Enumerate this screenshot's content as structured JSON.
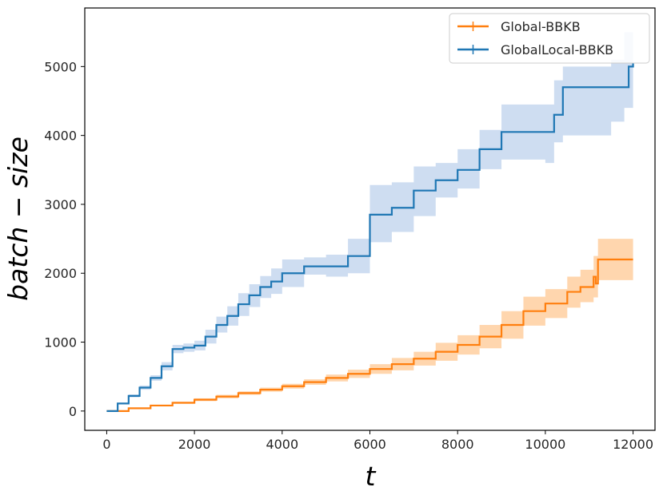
{
  "chart_data": {
    "type": "line",
    "xlabel": "t",
    "ylabel": "batch − size",
    "xlim": [
      -500,
      12500
    ],
    "ylim": [
      -280,
      5850
    ],
    "xticks": [
      0,
      2000,
      4000,
      6000,
      8000,
      10000,
      12000
    ],
    "yticks": [
      0,
      1000,
      2000,
      3000,
      4000,
      5000
    ],
    "grid": false,
    "legend_position": "top-right",
    "series": [
      {
        "name": "Global-BBKB",
        "color": "#ff7f0e",
        "band_color": "#ffbb78",
        "points": [
          [
            0,
            0
          ],
          [
            500,
            40
          ],
          [
            1000,
            80
          ],
          [
            1500,
            120
          ],
          [
            2000,
            165
          ],
          [
            2500,
            210
          ],
          [
            3000,
            260
          ],
          [
            3500,
            310
          ],
          [
            4000,
            360
          ],
          [
            4500,
            420
          ],
          [
            5000,
            480
          ],
          [
            5500,
            540
          ],
          [
            6000,
            610
          ],
          [
            6500,
            680
          ],
          [
            7000,
            760
          ],
          [
            7500,
            860
          ],
          [
            8000,
            960
          ],
          [
            8500,
            1080
          ],
          [
            9000,
            1250
          ],
          [
            9500,
            1450
          ],
          [
            10000,
            1560
          ],
          [
            10500,
            1730
          ],
          [
            10800,
            1800
          ],
          [
            11100,
            1950
          ],
          [
            11150,
            1850
          ],
          [
            11200,
            2200
          ],
          [
            12000,
            2200
          ]
        ],
        "upper": [
          [
            0,
            0
          ],
          [
            500,
            45
          ],
          [
            1000,
            90
          ],
          [
            1500,
            135
          ],
          [
            2000,
            185
          ],
          [
            2500,
            235
          ],
          [
            3000,
            285
          ],
          [
            3500,
            340
          ],
          [
            4000,
            395
          ],
          [
            4500,
            460
          ],
          [
            5000,
            530
          ],
          [
            5500,
            600
          ],
          [
            6000,
            680
          ],
          [
            6500,
            770
          ],
          [
            7000,
            860
          ],
          [
            7500,
            990
          ],
          [
            8000,
            1100
          ],
          [
            8500,
            1250
          ],
          [
            9000,
            1450
          ],
          [
            9500,
            1660
          ],
          [
            10000,
            1770
          ],
          [
            10500,
            1950
          ],
          [
            10800,
            2050
          ],
          [
            11100,
            2250
          ],
          [
            11200,
            2500
          ],
          [
            12000,
            2500
          ]
        ],
        "lower": [
          [
            0,
            0
          ],
          [
            500,
            35
          ],
          [
            1000,
            70
          ],
          [
            1500,
            105
          ],
          [
            2000,
            145
          ],
          [
            2500,
            185
          ],
          [
            3000,
            235
          ],
          [
            3500,
            280
          ],
          [
            4000,
            325
          ],
          [
            4500,
            380
          ],
          [
            5000,
            430
          ],
          [
            5500,
            480
          ],
          [
            6000,
            540
          ],
          [
            6500,
            590
          ],
          [
            7000,
            660
          ],
          [
            7500,
            730
          ],
          [
            8000,
            820
          ],
          [
            8500,
            910
          ],
          [
            9000,
            1050
          ],
          [
            9500,
            1240
          ],
          [
            10000,
            1350
          ],
          [
            10500,
            1500
          ],
          [
            10800,
            1580
          ],
          [
            11100,
            1650
          ],
          [
            11200,
            1900
          ],
          [
            12000,
            1900
          ]
        ]
      },
      {
        "name": "GlobalLocal-BBKB",
        "color": "#1f77b4",
        "band_color": "#aec7e8",
        "points": [
          [
            0,
            0
          ],
          [
            250,
            110
          ],
          [
            500,
            220
          ],
          [
            750,
            340
          ],
          [
            1000,
            480
          ],
          [
            1250,
            650
          ],
          [
            1500,
            900
          ],
          [
            1750,
            920
          ],
          [
            2000,
            950
          ],
          [
            2250,
            1080
          ],
          [
            2500,
            1250
          ],
          [
            2750,
            1380
          ],
          [
            3000,
            1550
          ],
          [
            3250,
            1680
          ],
          [
            3500,
            1800
          ],
          [
            3750,
            1880
          ],
          [
            4000,
            2000
          ],
          [
            4500,
            2100
          ],
          [
            5000,
            2100
          ],
          [
            5500,
            2250
          ],
          [
            6000,
            2850
          ],
          [
            6500,
            2950
          ],
          [
            7000,
            3200
          ],
          [
            7500,
            3350
          ],
          [
            8000,
            3500
          ],
          [
            8500,
            3800
          ],
          [
            9000,
            4050
          ],
          [
            9500,
            4050
          ],
          [
            10000,
            4050
          ],
          [
            10200,
            4300
          ],
          [
            10400,
            4700
          ],
          [
            11000,
            4700
          ],
          [
            11500,
            4700
          ],
          [
            11800,
            4700
          ],
          [
            11900,
            5000
          ],
          [
            12000,
            5050
          ]
        ],
        "upper": [
          [
            0,
            0
          ],
          [
            250,
            120
          ],
          [
            500,
            240
          ],
          [
            750,
            370
          ],
          [
            1000,
            520
          ],
          [
            1250,
            710
          ],
          [
            1500,
            960
          ],
          [
            1750,
            980
          ],
          [
            2000,
            1020
          ],
          [
            2250,
            1180
          ],
          [
            2500,
            1370
          ],
          [
            2750,
            1520
          ],
          [
            3000,
            1710
          ],
          [
            3250,
            1840
          ],
          [
            3500,
            1960
          ],
          [
            3750,
            2070
          ],
          [
            4000,
            2200
          ],
          [
            4500,
            2230
          ],
          [
            5000,
            2270
          ],
          [
            5500,
            2500
          ],
          [
            6000,
            3280
          ],
          [
            6500,
            3320
          ],
          [
            7000,
            3550
          ],
          [
            7500,
            3600
          ],
          [
            8000,
            3800
          ],
          [
            8500,
            4080
          ],
          [
            9000,
            4450
          ],
          [
            9500,
            4450
          ],
          [
            10000,
            4450
          ],
          [
            10200,
            4800
          ],
          [
            10400,
            5000
          ],
          [
            11000,
            5000
          ],
          [
            11500,
            5100
          ],
          [
            11800,
            5500
          ],
          [
            12000,
            5500
          ]
        ],
        "lower": [
          [
            0,
            0
          ],
          [
            250,
            100
          ],
          [
            500,
            200
          ],
          [
            750,
            310
          ],
          [
            1000,
            440
          ],
          [
            1250,
            590
          ],
          [
            1500,
            840
          ],
          [
            1750,
            860
          ],
          [
            2000,
            880
          ],
          [
            2250,
            980
          ],
          [
            2500,
            1140
          ],
          [
            2750,
            1240
          ],
          [
            3000,
            1380
          ],
          [
            3250,
            1510
          ],
          [
            3500,
            1640
          ],
          [
            3750,
            1700
          ],
          [
            4000,
            1800
          ],
          [
            4500,
            1980
          ],
          [
            5000,
            1950
          ],
          [
            5500,
            2000
          ],
          [
            6000,
            2450
          ],
          [
            6500,
            2600
          ],
          [
            7000,
            2830
          ],
          [
            7500,
            3100
          ],
          [
            8000,
            3230
          ],
          [
            8500,
            3510
          ],
          [
            9000,
            3650
          ],
          [
            9500,
            3650
          ],
          [
            10000,
            3600
          ],
          [
            10200,
            3900
          ],
          [
            10400,
            4000
          ],
          [
            11000,
            4000
          ],
          [
            11500,
            4200
          ],
          [
            11800,
            4400
          ],
          [
            12000,
            4500
          ]
        ]
      }
    ]
  }
}
